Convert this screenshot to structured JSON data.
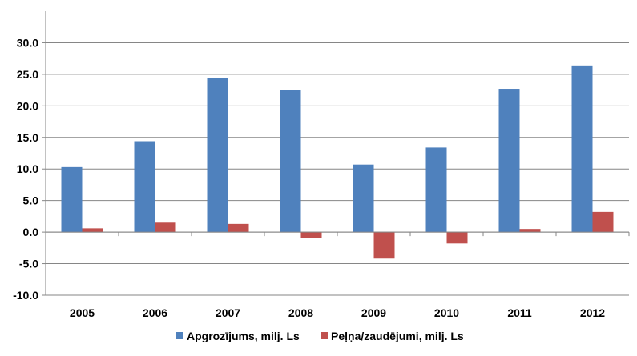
{
  "chart_data": {
    "type": "bar",
    "title": "",
    "xlabel": "",
    "ylabel": "",
    "categories": [
      "2005",
      "2006",
      "2007",
      "2008",
      "2009",
      "2010",
      "2011",
      "2012"
    ],
    "ylim": [
      -10,
      35
    ],
    "yticks": [
      -10,
      -5,
      0,
      5,
      10,
      15,
      20,
      25,
      30
    ],
    "ytick_labels": [
      "-10.0",
      "-5.0",
      "0.0",
      "5.0",
      "10.0",
      "15.0",
      "20.0",
      "25.0",
      "30.0"
    ],
    "grid": "horizontal major gridlines",
    "legend_position": "bottom",
    "series": [
      {
        "name": "Apgrozījums, milj. Ls",
        "color": "#4F81BD",
        "values": [
          10.3,
          14.4,
          24.4,
          22.5,
          10.7,
          13.4,
          22.7,
          26.4
        ]
      },
      {
        "name": "Peļņa/zaudējumi, milj. Ls",
        "color": "#C0504D",
        "values": [
          0.6,
          1.5,
          1.3,
          -0.9,
          -4.2,
          -1.8,
          0.5,
          3.2
        ]
      }
    ]
  }
}
